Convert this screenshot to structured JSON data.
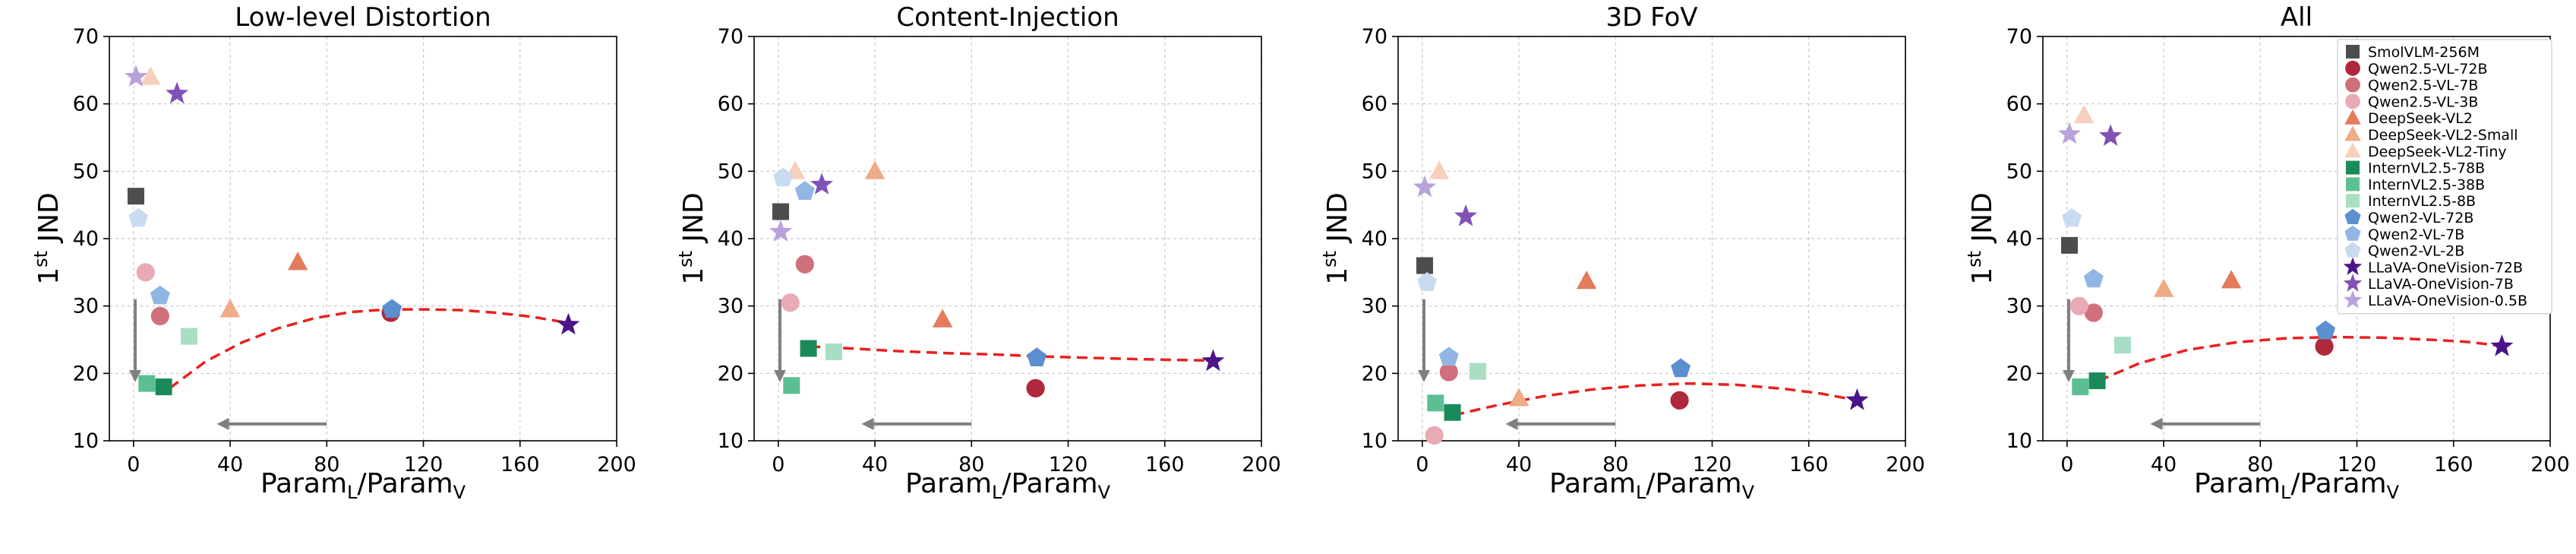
{
  "chart_data": {
    "type": "scatter",
    "x_range": [
      -10,
      200
    ],
    "y_range": [
      10,
      70
    ],
    "x_ticks": [
      0,
      40,
      80,
      120,
      160,
      200
    ],
    "y_ticks": [
      10,
      20,
      30,
      40,
      50,
      60,
      70
    ],
    "xlabel_main": "Param",
    "xlabel_sub1": "L",
    "xlabel_slash": "/Param",
    "xlabel_sub2": "V",
    "ylabel_sup": "st",
    "ylabel_pre": "1",
    "ylabel_main": "JND",
    "grid": true,
    "legend_position": "top-right of last panel",
    "models": [
      {
        "name": "SmolVLM-256M",
        "marker": "square",
        "color": "#4d4d4d",
        "x": 1
      },
      {
        "name": "Qwen2.5-VL-72B",
        "marker": "circle",
        "color": "#b0283b",
        "x": 106.5
      },
      {
        "name": "Qwen2.5-VL-7B",
        "marker": "circle",
        "color": "#d0707c",
        "x": 11
      },
      {
        "name": "Qwen2.5-VL-3B",
        "marker": "circle",
        "color": "#e8aab4",
        "x": 5
      },
      {
        "name": "DeepSeek-VL2",
        "marker": "triangle",
        "color": "#e27c5c",
        "x": 68
      },
      {
        "name": "DeepSeek-VL2-Small",
        "marker": "triangle",
        "color": "#eeab86",
        "x": 40
      },
      {
        "name": "DeepSeek-VL2-Tiny",
        "marker": "triangle",
        "color": "#f7cfbc",
        "x": 7
      },
      {
        "name": "InternVL2.5-78B",
        "marker": "square",
        "color": "#1b8a5a",
        "x": 12.5
      },
      {
        "name": "InternVL2.5-38B",
        "marker": "square",
        "color": "#5cbf93",
        "x": 5.5
      },
      {
        "name": "InternVL2.5-8B",
        "marker": "square",
        "color": "#a8dfc4",
        "x": 23
      },
      {
        "name": "Qwen2-VL-72B",
        "marker": "pentagon",
        "color": "#5b8fd0",
        "x": 107
      },
      {
        "name": "Qwen2-VL-7B",
        "marker": "pentagon",
        "color": "#92b6e3",
        "x": 11
      },
      {
        "name": "Qwen2-VL-2B",
        "marker": "pentagon",
        "color": "#c8dbf1",
        "x": 2
      },
      {
        "name": "LLaVA-OneVision-72B",
        "marker": "star",
        "color": "#4b1488",
        "x": 180
      },
      {
        "name": "LLaVA-OneVision-7B",
        "marker": "star",
        "color": "#8052b5",
        "x": 18
      },
      {
        "name": "LLaVA-OneVision-0.5B",
        "marker": "star",
        "color": "#b9a2dc",
        "x": 1
      }
    ],
    "panels": [
      {
        "title": "Low-level Distortion",
        "values": [
          46.3,
          29,
          28.5,
          35,
          36.5,
          29.5,
          64,
          18,
          18.5,
          25.5,
          29.5,
          31.5,
          43,
          27.2,
          61.5,
          64
        ],
        "fit_curve": {
          "x": [
            15,
            30,
            45,
            60,
            75,
            90,
            105,
            120,
            135,
            150,
            165,
            180
          ],
          "y": [
            17.8,
            21.8,
            24.6,
            26.7,
            28.2,
            29.1,
            29.5,
            29.5,
            29.4,
            29.0,
            28.4,
            27.5
          ]
        }
      },
      {
        "title": "Content-Injection",
        "values": [
          44,
          17.8,
          36.2,
          30.5,
          28,
          50,
          50,
          23.7,
          18.2,
          23.2,
          22.3,
          47,
          49,
          21.8,
          48,
          41
        ],
        "fit_curve": {
          "x": [
            13,
            30,
            50,
            70,
            90,
            110,
            130,
            150,
            165,
            180
          ],
          "y": [
            24.0,
            23.7,
            23.3,
            23.0,
            22.8,
            22.5,
            22.3,
            22.1,
            22.0,
            21.9
          ]
        }
      },
      {
        "title": "3D FoV",
        "values": [
          36,
          16,
          20.2,
          10.8,
          33.7,
          16.3,
          50,
          14.2,
          15.6,
          20.3,
          20.7,
          22.4,
          33.5,
          16,
          43.3,
          47.6
        ],
        "fit_curve": {
          "x": [
            13,
            30,
            50,
            70,
            90,
            110,
            130,
            150,
            165,
            180
          ],
          "y": [
            13.8,
            15.2,
            16.6,
            17.6,
            18.2,
            18.5,
            18.3,
            17.7,
            17.0,
            16.0
          ]
        }
      },
      {
        "title": "All",
        "values": [
          39,
          24,
          29,
          30,
          33.8,
          32.5,
          58.3,
          18.9,
          18,
          24.2,
          26.3,
          34,
          43,
          24,
          55.2,
          55.5
        ],
        "fit_curve": {
          "x": [
            13,
            30,
            50,
            70,
            90,
            110,
            130,
            150,
            165,
            180
          ],
          "y": [
            18.9,
            21.5,
            23.5,
            24.6,
            25.2,
            25.4,
            25.3,
            25.0,
            24.7,
            24.1
          ]
        }
      }
    ]
  }
}
